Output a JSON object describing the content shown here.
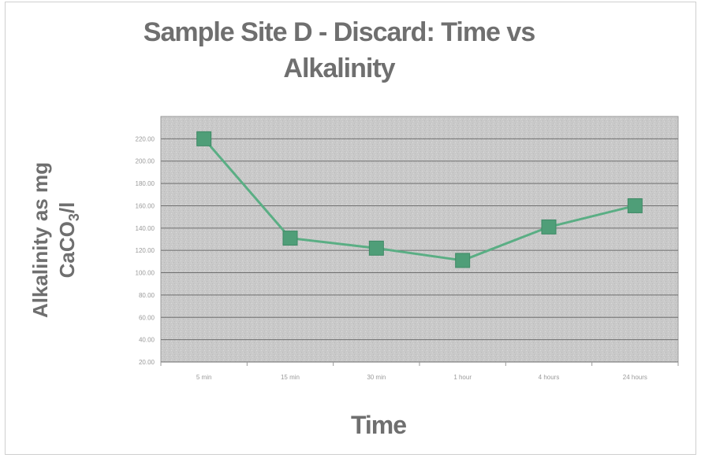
{
  "chart_data": {
    "type": "line",
    "title_line1": "Sample Site D - Discard: Time vs",
    "title_line2": "Alkalinity",
    "ylabel_main": "Alkalinity as mg",
    "ylabel_pre": "CaCO",
    "ylabel_sub": "3",
    "ylabel_post": "/l",
    "xlabel": "Time",
    "categories": [
      "5 min",
      "15 min",
      "30 min",
      "1 hour",
      "4 hours",
      "24 hours"
    ],
    "series": [
      {
        "values": [
          220,
          131,
          122,
          111,
          141,
          160
        ]
      }
    ],
    "y_ticks": [
      "220.00",
      "200.00",
      "180.00",
      "160.00",
      "140.00",
      "120.00",
      "100.00",
      "80.00",
      "60.00",
      "40.00",
      "20.00"
    ],
    "ylim": [
      20,
      240
    ],
    "grid": true,
    "legend": "none",
    "colors": {
      "line": "#5aae84",
      "marker": "#4f9e78",
      "plot_bg": "#c9c9c9",
      "gridline": "#6e6e6e",
      "text": "#6f6f6f"
    }
  }
}
